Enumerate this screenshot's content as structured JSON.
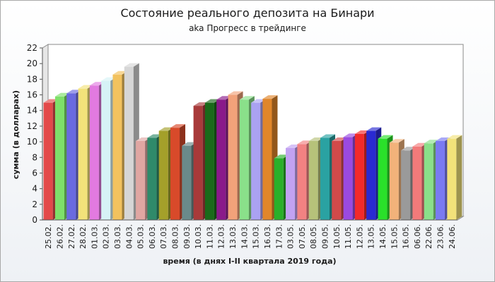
{
  "chart_data": {
    "type": "bar",
    "title": "Состояние реального депозита на Бинари",
    "subtitle": "aka Прогресс в трейдинге",
    "xlabel": "время (в днях I-II квартала 2019 года)",
    "ylabel": "сумма (в долларах)",
    "ylim": [
      0,
      22
    ],
    "yticks": [
      0,
      2,
      4,
      6,
      8,
      10,
      12,
      14,
      16,
      18,
      20,
      22
    ],
    "grid": false,
    "legend": "none",
    "categories": [
      "25.02.",
      "26.02.",
      "27.02.",
      "28.02.",
      "01.03.",
      "02.03.",
      "03.03.",
      "04.03.",
      "05.03.",
      "06.03.",
      "07.03.",
      "08.03.",
      "09.03.",
      "10.03.",
      "11.03.",
      "12.03.",
      "13.03.",
      "14.03.",
      "15.03.",
      "16.03.",
      "17.03.",
      "03.05.",
      "07.05.",
      "08.05.",
      "09.05.",
      "10.05.",
      "11.05.",
      "12.05.",
      "13.05.",
      "14.05.",
      "15.05.",
      "16.05.",
      "06.06.",
      "22.06.",
      "23.06.",
      "24.06."
    ],
    "values": [
      15.0,
      15.8,
      16.2,
      16.8,
      17.2,
      17.8,
      18.6,
      19.6,
      10.1,
      10.5,
      11.4,
      11.8,
      9.5,
      14.6,
      15.0,
      15.4,
      16.0,
      15.4,
      15.0,
      15.5,
      7.9,
      9.2,
      9.7,
      10.1,
      10.5,
      10.1,
      10.6,
      11.0,
      11.4,
      10.4,
      9.9,
      8.9,
      9.4,
      9.8,
      10.1,
      10.4
    ],
    "colors": [
      "#e34a4a",
      "#7ee06a",
      "#6a6ae0",
      "#f2e27a",
      "#e27ae0",
      "#d6f2f6",
      "#f2c25e",
      "#d6d6d6",
      "#e0a6a2",
      "#2f8a6a",
      "#a4a02a",
      "#d84a2a",
      "#6a8a8a",
      "#a83a3a",
      "#1a6a1a",
      "#8a1a8a",
      "#f2a27a",
      "#8ae08a",
      "#aaa2f2",
      "#e0862a",
      "#2ab02a",
      "#c2a2f2",
      "#f28282",
      "#b6c27a",
      "#2aa2a2",
      "#d24a4a",
      "#9a4ae0",
      "#f22a2a",
      "#2a2ad2",
      "#2ae02a",
      "#f2b27a",
      "#9a9a9a",
      "#f27a7a",
      "#8ae08a",
      "#7a7af2",
      "#f2e27a"
    ]
  }
}
